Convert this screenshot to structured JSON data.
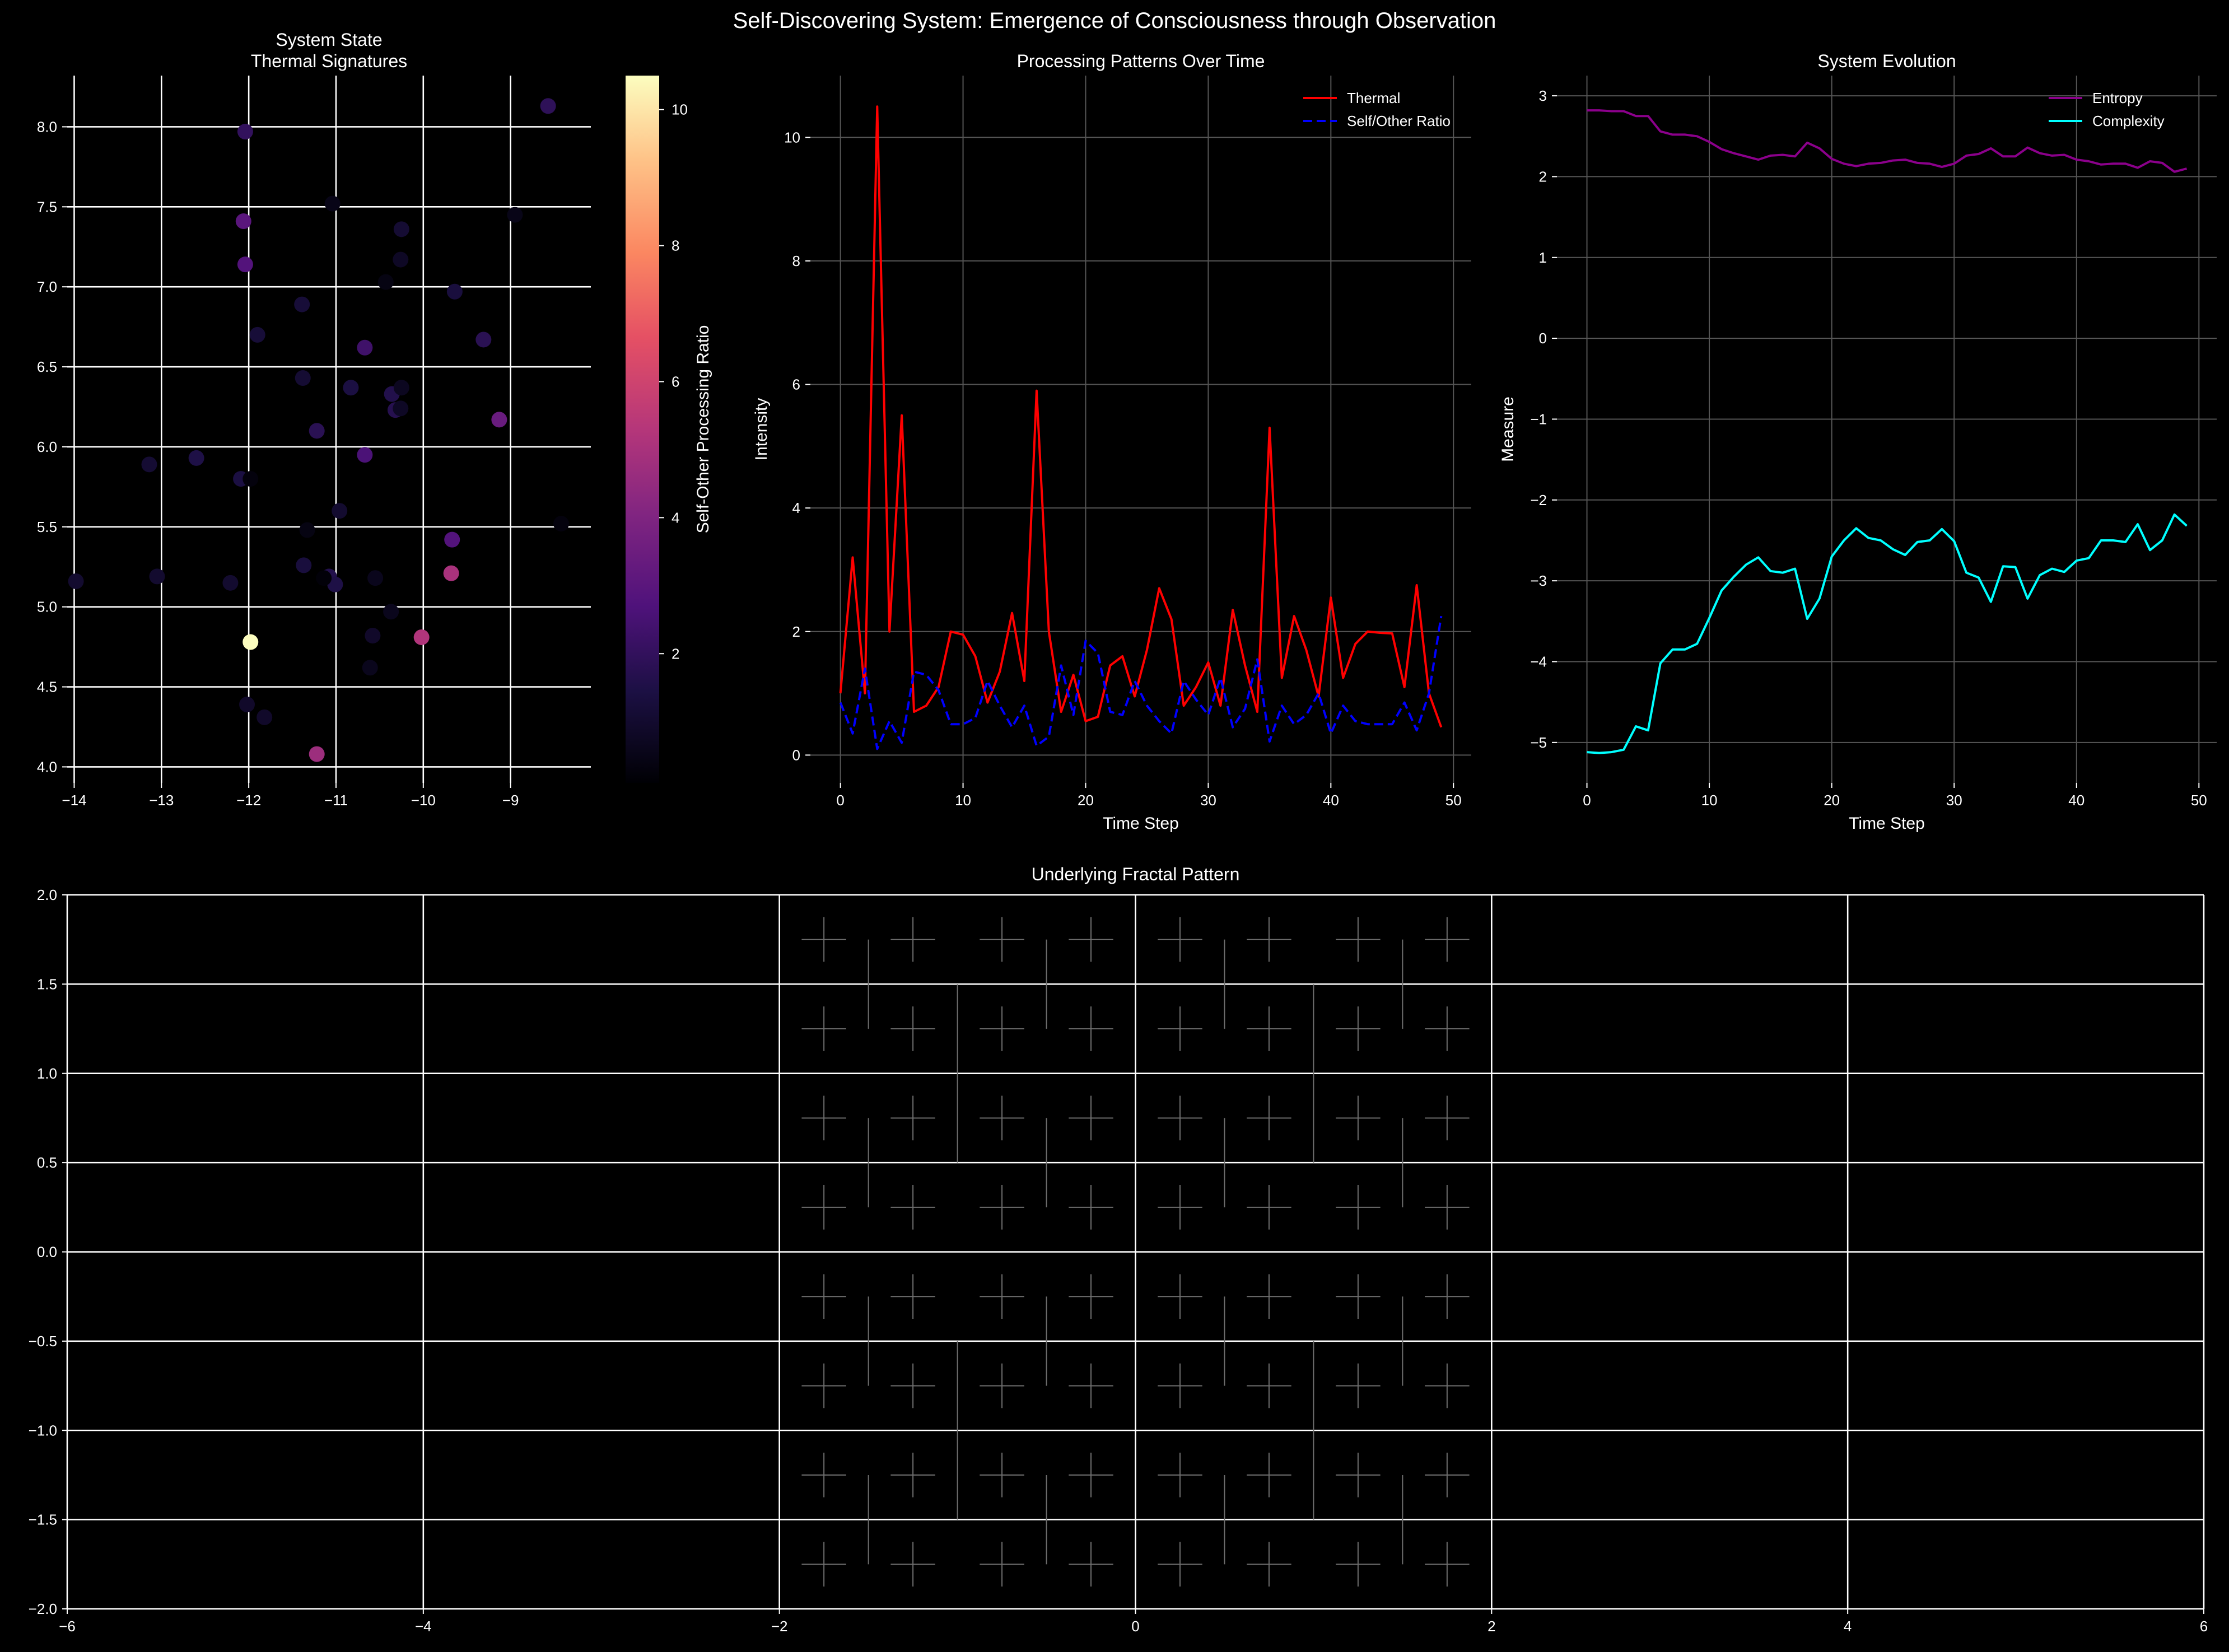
{
  "figure": {
    "title": "Self-Discovering System: Emergence of Consciousness through Observation"
  },
  "chart_data": [
    {
      "id": "scatter",
      "type": "scatter",
      "title": "System State\nThermal Signatures",
      "xlim": [
        -14.08,
        -8.08
      ],
      "ylim": [
        3.9,
        8.32
      ],
      "xticks": [
        -14,
        -13,
        -12,
        -11,
        -10,
        -9
      ],
      "yticks": [
        4.0,
        4.5,
        5.0,
        5.5,
        6.0,
        6.5,
        7.0,
        7.5,
        8.0
      ],
      "grid": true,
      "colorbar": {
        "label": "Self-Other Processing Ratio",
        "range": [
          0.1,
          10.5
        ],
        "ticks": [
          2,
          4,
          6,
          8,
          10
        ],
        "colormap": "magma"
      },
      "points": [
        {
          "x": -11.98,
          "y": 4.78,
          "c": 10.5
        },
        {
          "x": -11.22,
          "y": 4.08,
          "c": 4.7
        },
        {
          "x": -9.68,
          "y": 5.21,
          "c": 5.0
        },
        {
          "x": -10.02,
          "y": 4.81,
          "c": 5.2
        },
        {
          "x": -9.13,
          "y": 6.17,
          "c": 3.4
        },
        {
          "x": -9.67,
          "y": 5.42,
          "c": 2.8
        },
        {
          "x": -12.06,
          "y": 7.41,
          "c": 3.0
        },
        {
          "x": -12.04,
          "y": 7.14,
          "c": 2.8
        },
        {
          "x": -10.67,
          "y": 5.95,
          "c": 2.6
        },
        {
          "x": -10.67,
          "y": 6.62,
          "c": 2.3
        },
        {
          "x": -12.04,
          "y": 7.97,
          "c": 2.0
        },
        {
          "x": -8.57,
          "y": 8.13,
          "c": 1.9
        },
        {
          "x": -9.31,
          "y": 6.67,
          "c": 1.8
        },
        {
          "x": -11.22,
          "y": 6.1,
          "c": 1.8
        },
        {
          "x": -10.32,
          "y": 6.23,
          "c": 1.7
        },
        {
          "x": -10.36,
          "y": 6.33,
          "c": 1.6
        },
        {
          "x": -11.08,
          "y": 5.19,
          "c": 1.6
        },
        {
          "x": -11.01,
          "y": 5.14,
          "c": 1.5
        },
        {
          "x": -12.6,
          "y": 5.93,
          "c": 1.5
        },
        {
          "x": -10.83,
          "y": 6.37,
          "c": 1.4
        },
        {
          "x": -12.09,
          "y": 5.8,
          "c": 1.4
        },
        {
          "x": -11.37,
          "y": 5.26,
          "c": 1.3
        },
        {
          "x": -9.64,
          "y": 6.97,
          "c": 1.3
        },
        {
          "x": -11.9,
          "y": 6.7,
          "c": 1.2
        },
        {
          "x": -11.39,
          "y": 6.89,
          "c": 1.2
        },
        {
          "x": -10.25,
          "y": 7.36,
          "c": 1.1
        },
        {
          "x": -11.38,
          "y": 6.43,
          "c": 1.1
        },
        {
          "x": -13.14,
          "y": 5.89,
          "c": 1.1
        },
        {
          "x": -10.96,
          "y": 5.6,
          "c": 1.0
        },
        {
          "x": -13.05,
          "y": 5.19,
          "c": 1.0
        },
        {
          "x": -12.21,
          "y": 5.15,
          "c": 1.0
        },
        {
          "x": -13.98,
          "y": 5.16,
          "c": 1.0
        },
        {
          "x": -11.82,
          "y": 4.31,
          "c": 0.9
        },
        {
          "x": -12.02,
          "y": 4.39,
          "c": 0.9
        },
        {
          "x": -10.58,
          "y": 4.82,
          "c": 0.9
        },
        {
          "x": -10.26,
          "y": 6.24,
          "c": 0.8
        },
        {
          "x": -10.26,
          "y": 7.17,
          "c": 0.8
        },
        {
          "x": -10.25,
          "y": 6.37,
          "c": 0.7
        },
        {
          "x": -10.37,
          "y": 4.97,
          "c": 0.6
        },
        {
          "x": -10.61,
          "y": 4.62,
          "c": 0.6
        },
        {
          "x": -10.55,
          "y": 5.18,
          "c": 0.6
        },
        {
          "x": -11.04,
          "y": 7.52,
          "c": 0.5
        },
        {
          "x": -8.95,
          "y": 7.45,
          "c": 0.5
        },
        {
          "x": -10.43,
          "y": 7.03,
          "c": 0.4
        },
        {
          "x": -11.33,
          "y": 5.48,
          "c": 0.4
        },
        {
          "x": -8.42,
          "y": 5.52,
          "c": 0.3
        },
        {
          "x": -11.98,
          "y": 5.8,
          "c": 0.3
        },
        {
          "x": -11.14,
          "y": 5.18,
          "c": 0.2
        }
      ]
    },
    {
      "id": "processing",
      "type": "line",
      "title": "Processing Patterns Over Time",
      "xlabel": "Time Step",
      "ylabel": "Intensity",
      "xlim": [
        -2.45,
        51.45
      ],
      "ylim": [
        -0.45,
        11.0
      ],
      "xticks": [
        0,
        10,
        20,
        30,
        40,
        50
      ],
      "yticks": [
        0,
        2,
        4,
        6,
        8,
        10
      ],
      "legend": "upper right",
      "grid": true,
      "x_start": 0,
      "series": [
        {
          "name": "Thermal",
          "color": "#ff0000",
          "dash": false,
          "values": [
            1.0,
            3.2,
            1.0,
            10.5,
            2.0,
            5.5,
            0.7,
            0.8,
            1.1,
            2.0,
            1.95,
            1.6,
            0.85,
            1.35,
            2.3,
            1.2,
            5.9,
            2.0,
            0.7,
            1.3,
            0.55,
            0.62,
            1.45,
            1.6,
            0.95,
            1.7,
            2.7,
            2.2,
            0.8,
            1.1,
            1.5,
            0.8,
            2.35,
            1.45,
            0.7,
            5.3,
            1.25,
            2.25,
            1.7,
            0.95,
            2.55,
            1.25,
            1.8,
            2.0,
            1.98,
            1.97,
            1.1,
            2.75,
            1.0,
            0.45
          ]
        },
        {
          "name": "Self/Other Ratio",
          "color": "#0000ff",
          "dash": true,
          "values": [
            0.85,
            0.35,
            1.4,
            0.1,
            0.55,
            0.2,
            1.35,
            1.3,
            1.05,
            0.5,
            0.5,
            0.6,
            1.2,
            0.8,
            0.45,
            0.8,
            0.15,
            0.3,
            1.45,
            0.65,
            1.85,
            1.65,
            0.7,
            0.65,
            1.2,
            0.8,
            0.55,
            0.35,
            1.2,
            0.9,
            0.65,
            1.25,
            0.45,
            0.75,
            1.55,
            0.22,
            0.8,
            0.5,
            0.65,
            1.0,
            0.35,
            0.8,
            0.55,
            0.5,
            0.5,
            0.5,
            0.85,
            0.4,
            1.0,
            2.25
          ]
        }
      ]
    },
    {
      "id": "evolution",
      "type": "line",
      "title": "System Evolution",
      "xlabel": "Time Step",
      "ylabel": "Measure",
      "xlim": [
        -2.45,
        51.45
      ],
      "ylim": [
        -5.5,
        3.25
      ],
      "xticks": [
        0,
        10,
        20,
        30,
        40,
        50
      ],
      "yticks": [
        -5,
        -4,
        -3,
        -2,
        -1,
        0,
        1,
        2,
        3
      ],
      "legend": "upper right",
      "grid": true,
      "x_start": 0,
      "series": [
        {
          "name": "Entropy",
          "color": "#8b008b",
          "dash": false,
          "values": [
            2.82,
            2.82,
            2.81,
            2.81,
            2.75,
            2.75,
            2.56,
            2.52,
            2.52,
            2.5,
            2.43,
            2.34,
            2.29,
            2.25,
            2.21,
            2.26,
            2.27,
            2.25,
            2.42,
            2.35,
            2.22,
            2.16,
            2.13,
            2.16,
            2.17,
            2.2,
            2.21,
            2.17,
            2.16,
            2.12,
            2.16,
            2.26,
            2.28,
            2.35,
            2.25,
            2.25,
            2.36,
            2.29,
            2.26,
            2.27,
            2.21,
            2.19,
            2.15,
            2.16,
            2.16,
            2.11,
            2.19,
            2.17,
            2.06,
            2.1
          ]
        },
        {
          "name": "Complexity",
          "color": "#00ffff",
          "dash": false,
          "values": [
            -5.12,
            -5.13,
            -5.12,
            -5.09,
            -4.8,
            -4.85,
            -4.02,
            -3.85,
            -3.85,
            -3.78,
            -3.46,
            -3.12,
            -2.95,
            -2.8,
            -2.71,
            -2.88,
            -2.9,
            -2.85,
            -3.47,
            -3.22,
            -2.7,
            -2.5,
            -2.35,
            -2.47,
            -2.5,
            -2.61,
            -2.68,
            -2.52,
            -2.5,
            -2.36,
            -2.51,
            -2.9,
            -2.96,
            -3.26,
            -2.82,
            -2.83,
            -3.22,
            -2.93,
            -2.85,
            -2.89,
            -2.75,
            -2.72,
            -2.5,
            -2.5,
            -2.52,
            -2.3,
            -2.62,
            -2.5,
            -2.18,
            -2.32
          ]
        }
      ]
    },
    {
      "id": "fractal",
      "type": "line",
      "title": "Underlying Fractal Pattern",
      "xlim": [
        -6,
        6
      ],
      "ylim": [
        -2,
        2
      ],
      "xticks": [
        -6,
        -4,
        -2,
        0,
        2,
        4,
        6
      ],
      "yticks": [
        -2.0,
        -1.5,
        -1.0,
        -0.5,
        0.0,
        0.5,
        1.0,
        1.5,
        2.0
      ],
      "grid": true,
      "pattern": "H-tree recursive crosses",
      "pattern_color": "#6e6e6e"
    }
  ]
}
